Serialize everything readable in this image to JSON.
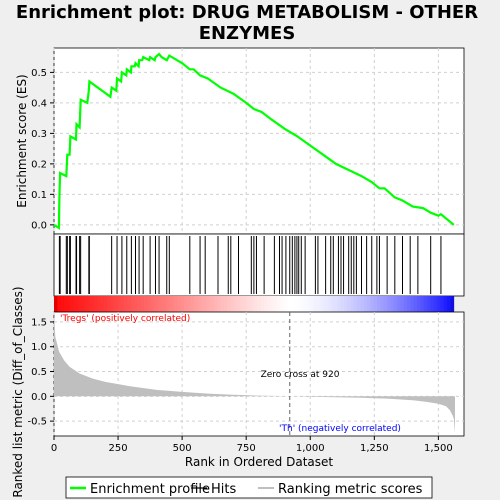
{
  "chart_data": {
    "type": "line",
    "title_line1": "Enrichment plot: DRUG METABOLISM - OTHER",
    "title_line2": "ENZYMES",
    "es_panel": {
      "ylabel": "Enrichment score (ES)",
      "ylim": [
        -0.03,
        0.58
      ],
      "yticks": [
        "0.0",
        "0.1",
        "0.2",
        "0.3",
        "0.4",
        "0.5"
      ],
      "ytick_values": [
        0.0,
        0.1,
        0.2,
        0.3,
        0.4,
        0.5
      ],
      "grid": true,
      "line_color": "#00ff00",
      "points": [
        [
          0,
          0.0
        ],
        [
          19,
          -0.01
        ],
        [
          21,
          0.09
        ],
        [
          24,
          0.17
        ],
        [
          48,
          0.16
        ],
        [
          52,
          0.23
        ],
        [
          61,
          0.23
        ],
        [
          64,
          0.29
        ],
        [
          86,
          0.28
        ],
        [
          88,
          0.33
        ],
        [
          100,
          0.32
        ],
        [
          104,
          0.41
        ],
        [
          130,
          0.4
        ],
        [
          136,
          0.44
        ],
        [
          138,
          0.47
        ],
        [
          220,
          0.42
        ],
        [
          225,
          0.45
        ],
        [
          243,
          0.44
        ],
        [
          246,
          0.48
        ],
        [
          262,
          0.47
        ],
        [
          265,
          0.5
        ],
        [
          282,
          0.49
        ],
        [
          284,
          0.51
        ],
        [
          300,
          0.5
        ],
        [
          302,
          0.52
        ],
        [
          315,
          0.52
        ],
        [
          318,
          0.53
        ],
        [
          330,
          0.52
        ],
        [
          332,
          0.54
        ],
        [
          344,
          0.54
        ],
        [
          348,
          0.55
        ],
        [
          372,
          0.54
        ],
        [
          375,
          0.55
        ],
        [
          393,
          0.54
        ],
        [
          396,
          0.55
        ],
        [
          410,
          0.56
        ],
        [
          420,
          0.55
        ],
        [
          440,
          0.54
        ],
        [
          450,
          0.555
        ],
        [
          500,
          0.53
        ],
        [
          530,
          0.51
        ],
        [
          545,
          0.51
        ],
        [
          570,
          0.49
        ],
        [
          600,
          0.48
        ],
        [
          650,
          0.45
        ],
        [
          700,
          0.43
        ],
        [
          750,
          0.4
        ],
        [
          780,
          0.38
        ],
        [
          810,
          0.37
        ],
        [
          850,
          0.345
        ],
        [
          900,
          0.315
        ],
        [
          950,
          0.29
        ],
        [
          1000,
          0.26
        ],
        [
          1050,
          0.23
        ],
        [
          1100,
          0.2
        ],
        [
          1150,
          0.18
        ],
        [
          1200,
          0.16
        ],
        [
          1240,
          0.14
        ],
        [
          1270,
          0.12
        ],
        [
          1290,
          0.12
        ],
        [
          1330,
          0.09
        ],
        [
          1360,
          0.08
        ],
        [
          1400,
          0.06
        ],
        [
          1440,
          0.055
        ],
        [
          1470,
          0.04
        ],
        [
          1500,
          0.03
        ],
        [
          1510,
          0.035
        ],
        [
          1560,
          0.0
        ]
      ]
    },
    "hits": [
      21,
      24,
      48,
      52,
      61,
      64,
      86,
      88,
      100,
      104,
      136,
      138,
      225,
      246,
      265,
      284,
      302,
      318,
      332,
      348,
      375,
      396,
      410,
      440,
      450,
      530,
      570,
      590,
      640,
      680,
      690,
      720,
      770,
      780,
      790,
      820,
      860,
      880,
      890,
      905,
      920,
      930,
      940,
      948,
      955,
      965,
      980,
      1020,
      1030,
      1060,
      1080,
      1090,
      1110,
      1120,
      1130,
      1150,
      1160,
      1170,
      1180,
      1200,
      1220,
      1240,
      1260,
      1270,
      1300,
      1330,
      1360,
      1390,
      1420,
      1470,
      1510
    ],
    "ranking_panel": {
      "ylabel": "Ranked list metric (Diff_of_Classes)",
      "xlabel": "Rank in Ordered Dataset",
      "ylim": [
        -0.8,
        1.7
      ],
      "yticks": [
        "-0.5",
        "0.0",
        "0.5",
        "1.0",
        "1.5"
      ],
      "ytick_values": [
        -0.5,
        0.0,
        0.5,
        1.0,
        1.5
      ],
      "xlim": [
        0,
        1600
      ],
      "xticks": [
        "0",
        "250",
        "500",
        "750",
        "1,000",
        "1,250",
        "1,500"
      ],
      "xtick_values": [
        0,
        250,
        500,
        750,
        1000,
        1250,
        1500
      ],
      "metric_profile": [
        [
          0,
          1.7
        ],
        [
          5,
          1.2
        ],
        [
          20,
          0.9
        ],
        [
          40,
          0.72
        ],
        [
          60,
          0.6
        ],
        [
          100,
          0.46
        ],
        [
          150,
          0.36
        ],
        [
          200,
          0.29
        ],
        [
          300,
          0.2
        ],
        [
          400,
          0.13
        ],
        [
          500,
          0.09
        ],
        [
          600,
          0.055
        ],
        [
          700,
          0.03
        ],
        [
          800,
          0.015
        ],
        [
          900,
          0.004
        ],
        [
          920,
          0.0
        ],
        [
          1000,
          -0.01
        ],
        [
          1100,
          -0.02
        ],
        [
          1200,
          -0.03
        ],
        [
          1300,
          -0.045
        ],
        [
          1400,
          -0.08
        ],
        [
          1450,
          -0.11
        ],
        [
          1500,
          -0.15
        ],
        [
          1530,
          -0.2
        ],
        [
          1545,
          -0.28
        ],
        [
          1555,
          -0.38
        ],
        [
          1560,
          -0.45
        ],
        [
          1565,
          -0.75
        ]
      ],
      "pos_label": "'Tregs' (positively correlated)",
      "neg_label": "'Th' (negatively correlated)",
      "zero_cross_label": "Zero cross at 920",
      "zero_cross": 920,
      "pos_color": "#ff0000",
      "neg_color": "#0000ff"
    },
    "legend": [
      "Enrichment profile",
      "Hits",
      "Ranking metric scores"
    ],
    "legend_placement": "bottom"
  }
}
